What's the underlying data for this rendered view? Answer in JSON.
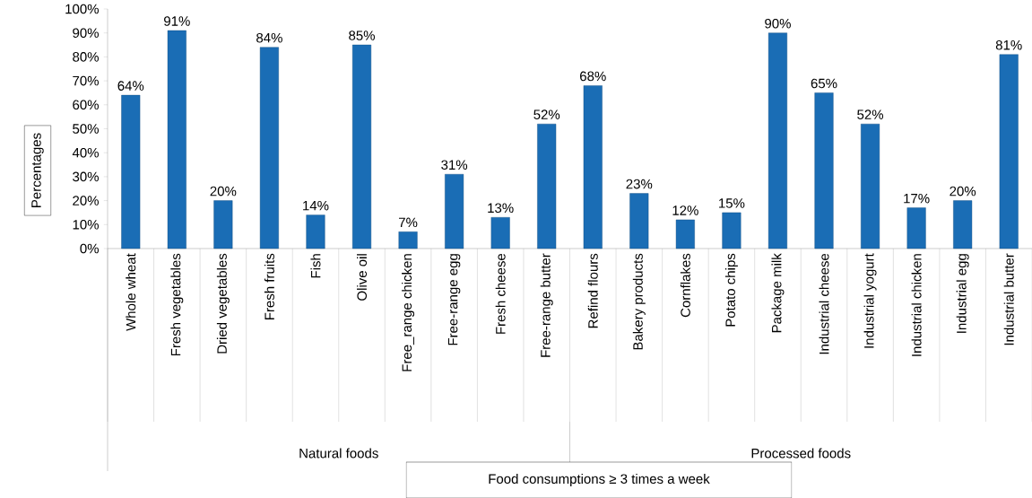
{
  "chart_data": {
    "type": "bar",
    "ylabel": "Percentages",
    "categories": [
      "Whole wheat",
      "Fresh vegetables",
      "Dried vegetables",
      "Fresh  fruits",
      "Fish",
      "Olive oil",
      "Free_range  chicken",
      "Free-range egg",
      "Fresh  cheese",
      "Free-range  butter",
      "Refind  flours",
      "Bakery products",
      "Cornflakes",
      "Potato chips",
      "Package  milk",
      "Industrial  cheese",
      "Industrial  yogurt",
      "Industrial  chicken",
      "Industrial  egg",
      "Industrial  butter"
    ],
    "values": [
      64,
      91,
      20,
      84,
      14,
      85,
      7,
      31,
      13,
      52,
      68,
      23,
      12,
      15,
      90,
      65,
      52,
      17,
      20,
      81
    ],
    "value_labels": [
      "64%",
      "91%",
      "20%",
      "84%",
      "14%",
      "85%",
      "7%",
      "31%",
      "13%",
      "52%",
      "68%",
      "23%",
      "12%",
      "15%",
      "90%",
      "65%",
      "52%",
      "17%",
      "20%",
      "81%"
    ],
    "color": "#1a6db5",
    "ylim": [
      0,
      100
    ],
    "yticks": [
      {
        "value": 0,
        "label": "0%"
      },
      {
        "value": 10,
        "label": "10%"
      },
      {
        "value": 20,
        "label": "20%"
      },
      {
        "value": 30,
        "label": "30%"
      },
      {
        "value": 40,
        "label": "40%"
      },
      {
        "value": 50,
        "label": "50%"
      },
      {
        "value": 60,
        "label": "60%"
      },
      {
        "value": 70,
        "label": "70%"
      },
      {
        "value": 80,
        "label": "80%"
      },
      {
        "value": 90,
        "label": "90%"
      },
      {
        "value": 100,
        "label": "100%"
      }
    ],
    "annotations": [
      "Natural foods",
      "Processed foods",
      "Food consumptions ≥ 3 times a week"
    ]
  }
}
